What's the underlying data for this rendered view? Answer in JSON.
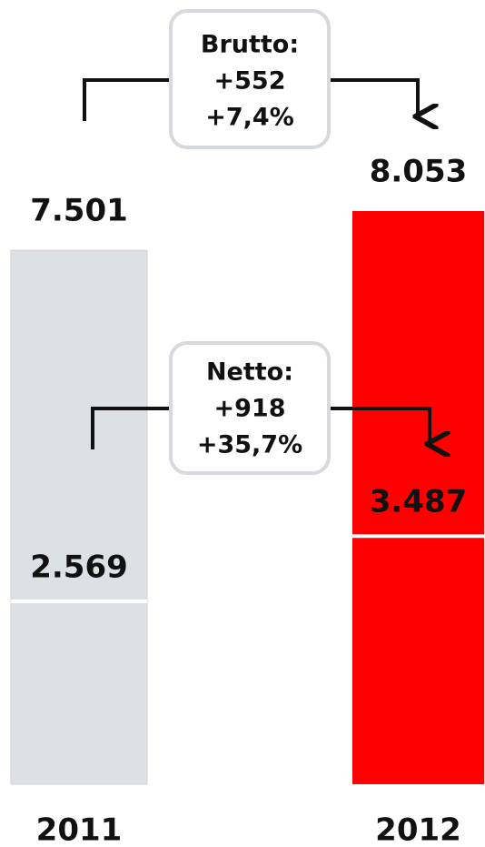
{
  "chart_data": {
    "type": "bar",
    "categories": [
      "2011",
      "2012"
    ],
    "colors": [
      "#dde0e5",
      "#ff0000"
    ],
    "series": [
      {
        "values": [
          7501,
          8053
        ],
        "value_labels": [
          "7.501",
          "8.053"
        ]
      },
      {
        "values": [
          2569,
          3487
        ],
        "value_labels": [
          "2.569",
          "3.487"
        ]
      }
    ],
    "annotations": [
      {
        "lines": [
          "Brutto:",
          "+552",
          "+7,4%"
        ]
      },
      {
        "lines": [
          "Netto:",
          "+918",
          "+35,7%"
        ]
      }
    ]
  }
}
